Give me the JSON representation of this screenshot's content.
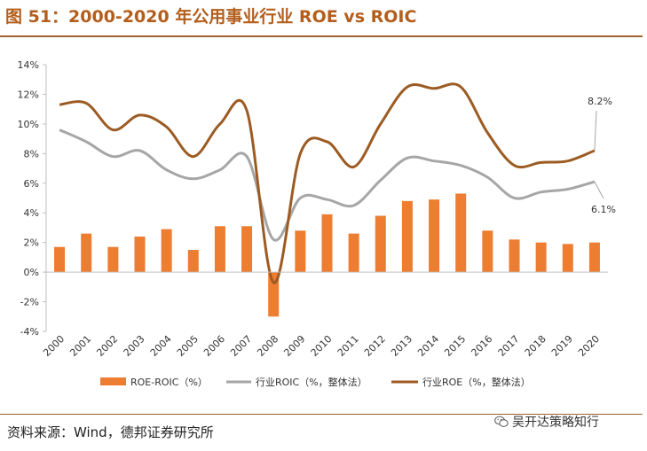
{
  "header": {
    "title": "图 51：2000-2020 年公用事业行业 ROE vs ROIC"
  },
  "footer": {
    "source": "资料来源：Wind，德邦证券研究所",
    "watermark": "吴开达策略知行",
    "watermark_icon": "wechat-icon"
  },
  "colors": {
    "title": "#b35e1c",
    "bar": "#ed7d31",
    "roic": "#a6a6a6",
    "roe": "#9c5b23"
  },
  "chart_data": {
    "type": "bar+line",
    "title": "",
    "categories": [
      "2000",
      "2001",
      "2002",
      "2003",
      "2004",
      "2005",
      "2006",
      "2007",
      "2008",
      "2009",
      "2010",
      "2011",
      "2012",
      "2013",
      "2014",
      "2015",
      "2016",
      "2017",
      "2018",
      "2019",
      "2020"
    ],
    "y_ticks": [
      "14%",
      "12%",
      "10%",
      "8%",
      "6%",
      "4%",
      "2%",
      "0%",
      "-2%",
      "-4%"
    ],
    "ylim": [
      -4,
      14
    ],
    "y_unit": "%",
    "series": [
      {
        "name": "ROE-ROIC（%）",
        "type": "bar",
        "values": [
          1.7,
          2.6,
          1.7,
          2.4,
          2.9,
          1.5,
          3.1,
          3.1,
          -3.0,
          2.8,
          3.9,
          2.6,
          3.8,
          4.8,
          4.9,
          5.3,
          2.8,
          2.2,
          2.0,
          1.9,
          2.0
        ]
      },
      {
        "name": "行业ROIC（%，整体法）",
        "type": "line",
        "values": [
          9.6,
          8.8,
          7.8,
          8.2,
          6.9,
          6.3,
          6.9,
          7.8,
          2.2,
          5.0,
          4.9,
          4.5,
          6.2,
          7.7,
          7.5,
          7.2,
          6.4,
          5.0,
          5.4,
          5.6,
          6.1
        ]
      },
      {
        "name": "行业ROE（%，整体法）",
        "type": "line",
        "values": [
          11.3,
          11.4,
          9.6,
          10.6,
          9.8,
          7.8,
          10.0,
          10.9,
          -0.7,
          8.0,
          8.8,
          7.1,
          10.0,
          12.5,
          12.4,
          12.5,
          9.4,
          7.2,
          7.4,
          7.5,
          8.2
        ]
      }
    ],
    "annotations": [
      {
        "text": "8.2%",
        "series": "行业ROE（%，整体法）",
        "category": "2020"
      },
      {
        "text": "6.1%",
        "series": "行业ROIC（%，整体法）",
        "category": "2020"
      }
    ],
    "legend": "bottom",
    "grid": false
  }
}
